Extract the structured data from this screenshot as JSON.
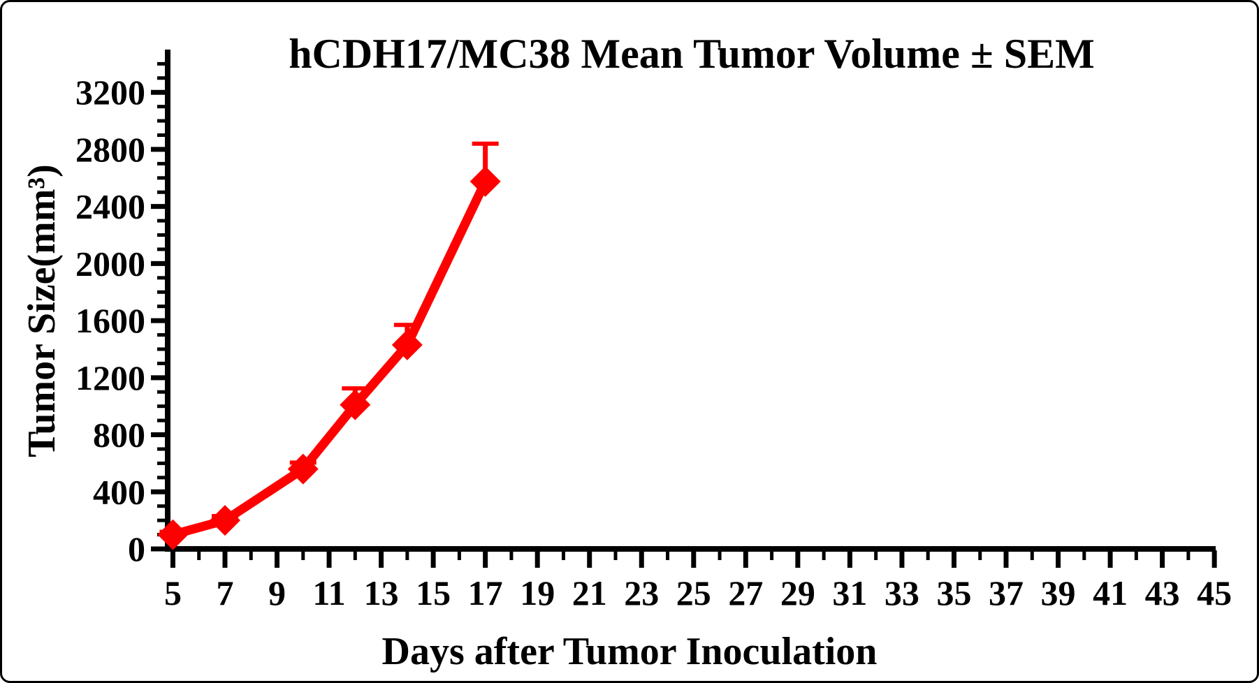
{
  "page": {
    "background_color": "#FFFFFF",
    "frame_border_color": "#000000"
  },
  "chart_data": {
    "type": "line",
    "title": "hCDH17/MC38 Mean Tumor Volume ± SEM",
    "xlabel": "Days after Tumor Inoculation",
    "ylabel": "Tumor Size(mm³)",
    "axis_color": "#000000",
    "text_color": "#000000",
    "grid": false,
    "legend": "none",
    "xlim": [
      4.8,
      45.05
    ],
    "ylim": [
      0,
      3480
    ],
    "x_major_ticks": [
      5,
      7,
      9,
      11,
      13,
      15,
      17,
      19,
      21,
      23,
      25,
      27,
      29,
      31,
      33,
      35,
      37,
      39,
      41,
      43,
      45
    ],
    "x_minor_ticks": [
      6,
      8,
      10,
      12,
      14,
      16,
      18,
      20,
      22,
      24,
      26,
      28,
      30,
      32,
      34,
      36,
      38,
      40,
      42,
      44
    ],
    "y_major_ticks": [
      0,
      400,
      800,
      1200,
      1600,
      2000,
      2400,
      2800,
      3200
    ],
    "y_minor_step": 100,
    "y_minor_max": 3400,
    "error_bar_direction": "upper",
    "series": [
      {
        "name": "hCDH17/MC38",
        "color": "#FF0000",
        "marker": "diamond",
        "points": [
          {
            "x": 5,
            "y": 100,
            "sem": 20
          },
          {
            "x": 7,
            "y": 200,
            "sem": 30
          },
          {
            "x": 10,
            "y": 560,
            "sem": 45
          },
          {
            "x": 12,
            "y": 1010,
            "sem": 115
          },
          {
            "x": 14,
            "y": 1430,
            "sem": 140
          },
          {
            "x": 17,
            "y": 2575,
            "sem": 265
          }
        ]
      }
    ]
  }
}
